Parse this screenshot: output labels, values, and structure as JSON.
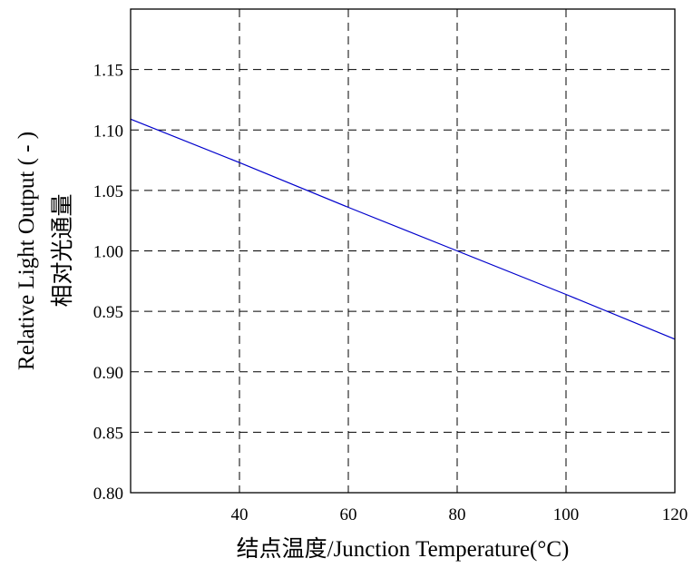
{
  "chart_data": {
    "type": "line",
    "title": "",
    "xlabel": "结点温度/Junction Temperature(°C)",
    "ylabel": "Relative Light Output ( - )",
    "ylabel_cn": "相对光通量",
    "xlim": [
      20,
      120
    ],
    "ylim": [
      0.8,
      1.2
    ],
    "x_ticks": [
      40,
      60,
      80,
      100,
      120
    ],
    "y_ticks": [
      0.8,
      0.85,
      0.9,
      0.95,
      1.0,
      1.05,
      1.1,
      1.15
    ],
    "x_tick_labels": [
      "40",
      "60",
      "80",
      "100",
      "120"
    ],
    "y_tick_labels": [
      "0.80",
      "0.85",
      "0.90",
      "0.95",
      "1.00",
      "1.05",
      "1.10",
      "1.15"
    ],
    "grid": true,
    "series": [
      {
        "color": "#0000cc",
        "x": [
          20,
          40,
          60,
          80,
          100,
          120
        ],
        "y": [
          1.109,
          1.073,
          1.036,
          1.0,
          0.964,
          0.927
        ]
      }
    ]
  }
}
